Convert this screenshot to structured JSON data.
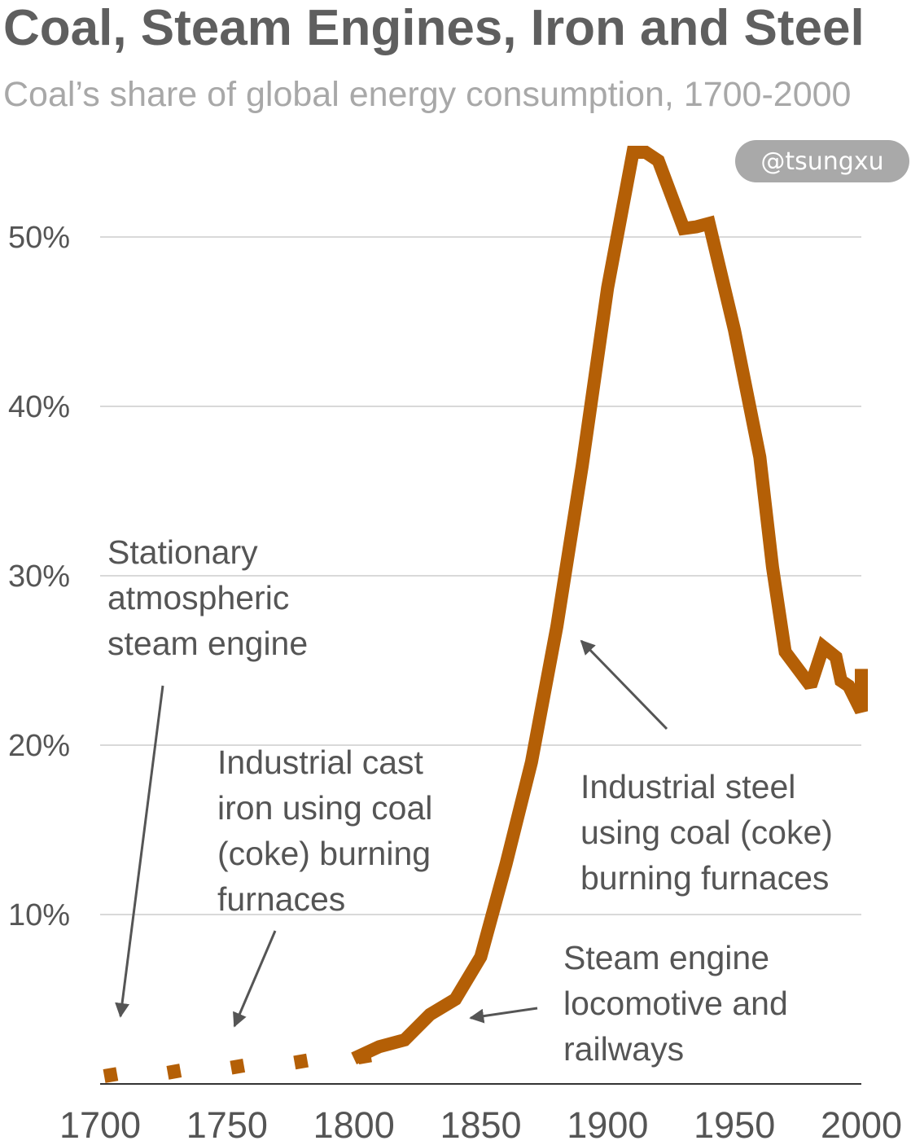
{
  "title": "Coal, Steam Engines, Iron and Steel",
  "subtitle": "Coal’s share of global energy consumption, 1700-2000",
  "watermark": "@tsungxu",
  "colors": {
    "line": "#b45f06",
    "grid": "#d9d9d9",
    "axis": "#333333",
    "text": "#555555",
    "arrow": "#555555"
  },
  "annotations": [
    {
      "id": "stationary",
      "lines": [
        "Stationary",
        "atmospheric",
        "steam engine"
      ]
    },
    {
      "id": "cast-iron",
      "lines": [
        "Industrial cast",
        "iron using coal",
        "(coke) burning",
        "furnaces"
      ]
    },
    {
      "id": "steel",
      "lines": [
        "Industrial steel",
        "using coal (coke)",
        "burning furnaces"
      ]
    },
    {
      "id": "locomotive",
      "lines": [
        "Steam engine",
        "locomotive and",
        "railways"
      ]
    }
  ],
  "chart_data": {
    "type": "line",
    "title": "Coal, Steam Engines, Iron and Steel",
    "subtitle": "Coal’s share of global energy consumption, 1700-2000",
    "xlabel": "",
    "ylabel": "",
    "xlim": [
      1700,
      2000
    ],
    "ylim": [
      0,
      55
    ],
    "xticks": [
      1700,
      1750,
      1800,
      1850,
      1900,
      1950,
      2000
    ],
    "xtick_labels": [
      "1700",
      "1750",
      "1800",
      "1850",
      "1900",
      "1950",
      "2000"
    ],
    "yticks": [
      10,
      20,
      30,
      40,
      50
    ],
    "ytick_labels": [
      "10%",
      "20%",
      "30%",
      "40%",
      "50%"
    ],
    "grid": true,
    "series": [
      {
        "style": "dotted",
        "x": [
          1700,
          1725,
          1750,
          1775,
          1800
        ],
        "y": [
          0.5,
          0.7,
          1.0,
          1.3,
          1.6
        ]
      },
      {
        "style": "solid",
        "x": [
          1800,
          1810,
          1820,
          1830,
          1840,
          1850,
          1860,
          1870,
          1880,
          1890,
          1900,
          1910,
          1915,
          1920,
          1930,
          1935,
          1940,
          1950,
          1960,
          1965,
          1970,
          1980,
          1985,
          1990,
          1992,
          1995,
          2000,
          2000
        ],
        "y": [
          1.5,
          2.2,
          2.6,
          4.1,
          5.0,
          7.5,
          13.0,
          19.0,
          27.0,
          36.5,
          47.0,
          55.0,
          55.0,
          54.5,
          50.5,
          50.6,
          50.8,
          44.5,
          37.0,
          30.5,
          25.5,
          23.5,
          25.8,
          25.2,
          23.8,
          23.5,
          22.0,
          24.5
        ]
      }
    ]
  }
}
